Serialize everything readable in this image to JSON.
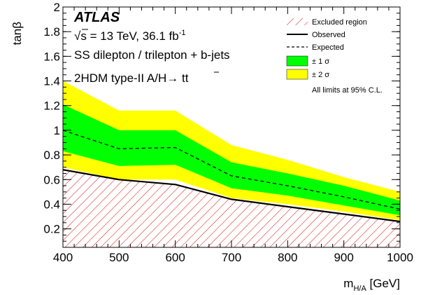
{
  "chart_data": {
    "type": "area",
    "ylabel": "tanβ",
    "xlabel_main": "m",
    "xlabel_sub": "H/A",
    "xlabel_unit": " [GeV]",
    "xlim": [
      400,
      1000
    ],
    "ylim": [
      0.05,
      2.0
    ],
    "x_ticks": [
      400,
      500,
      600,
      700,
      800,
      900,
      1000
    ],
    "y_ticks": [
      0.2,
      0.4,
      0.6,
      0.8,
      1,
      1.2,
      1.4,
      1.6,
      1.8,
      2
    ],
    "annotations": {
      "experiment": "ATLAS",
      "energy_sqrt": "s",
      "energy_text": " = 13 TeV, 36.1 fb",
      "energy_sup": "-1",
      "channel": "SS dilepton / trilepton + b-jets",
      "model_prefix": "2HDM type-II A/H→ t",
      "model_suffix": "t"
    },
    "legend": {
      "excluded": "Excluded region",
      "observed": "Observed",
      "expected": "Expected",
      "one_sigma": "± 1 σ",
      "two_sigma": "± 2 σ",
      "note": "All limits at 95% C.L."
    },
    "colors": {
      "two_sigma": "#ffff00",
      "one_sigma": "#00ff00",
      "hatch": "#e0302c",
      "line": "#000000"
    },
    "x": [
      400,
      500,
      600,
      700,
      800,
      900,
      1000
    ],
    "observed": [
      0.68,
      0.6,
      0.56,
      0.44,
      0.38,
      0.32,
      0.26
    ],
    "expected": [
      1.0,
      0.85,
      0.86,
      0.63,
      0.55,
      0.46,
      0.36
    ],
    "one_sigma_upper": [
      1.21,
      1.0,
      1.0,
      0.74,
      0.65,
      0.55,
      0.43
    ],
    "one_sigma_lower": [
      0.83,
      0.71,
      0.72,
      0.53,
      0.47,
      0.39,
      0.31
    ],
    "two_sigma_upper": [
      1.4,
      1.16,
      1.16,
      0.88,
      0.76,
      0.62,
      0.5
    ],
    "two_sigma_lower": [
      0.7,
      0.6,
      0.6,
      0.45,
      0.4,
      0.34,
      0.27
    ]
  }
}
